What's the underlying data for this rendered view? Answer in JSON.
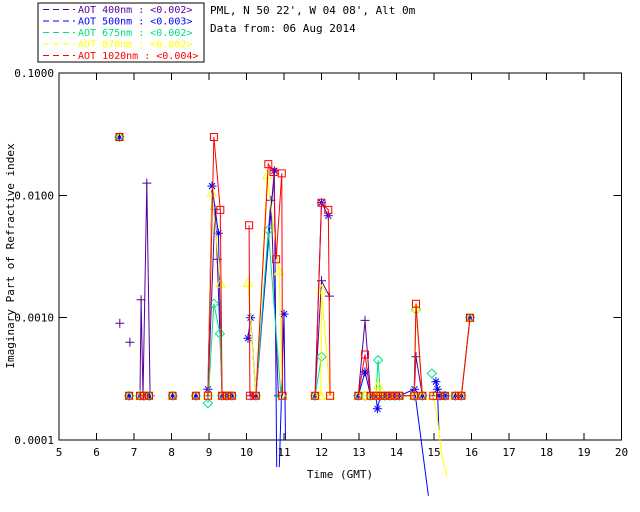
{
  "header": {
    "line1": "PML, N 50 22', W 04 08', Alt 0m",
    "line2": "Data from: 06 Aug 2014"
  },
  "legend": {
    "entries": [
      {
        "label": "AOT  400nm : <0.002>",
        "color": "#550099"
      },
      {
        "label": "AOT  500nm : <0.003>",
        "color": "#0000ff"
      },
      {
        "label": "AOT  675nm : <0.002>",
        "color": "#00e080"
      },
      {
        "label": "AOT  870nm : <0.002>",
        "color": "#ffff00"
      },
      {
        "label": "AOT 1020nm : <0.004>",
        "color": "#ff0000"
      }
    ]
  },
  "chart_data": {
    "type": "line",
    "xlabel": "Time (GMT)",
    "ylabel": "Imaginary Part of Refractive index",
    "x_axis": {
      "min": 5,
      "max": 20,
      "ticks": [
        5,
        6,
        7,
        8,
        9,
        10,
        11,
        12,
        13,
        14,
        15,
        16,
        17,
        18,
        19,
        20
      ]
    },
    "y_axis": {
      "scale": "log",
      "min": 0.0001,
      "max": 0.1,
      "tick_values": [
        0.1,
        0.01,
        0.001,
        0.0001
      ],
      "tick_labels": [
        "0.1000",
        "0.0100",
        "0.0010",
        "0.0001"
      ]
    },
    "grid": false,
    "note": "points are [time_gmt, value]; a trailing 0 means line vertex without marker (trace dips below axis)",
    "series": [
      {
        "name": "AOT 400nm",
        "color": "#550099",
        "marker": "plus",
        "segments": [
          [
            [
              6.61,
              0.03
            ]
          ],
          [
            [
              6.62,
              0.0009
            ]
          ],
          [
            [
              6.89,
              0.00063
            ]
          ],
          [
            [
              6.87,
              0.00023
            ]
          ],
          [
            [
              7.16,
              0.00023
            ],
            [
              7.19,
              0.0014
            ],
            [
              7.24,
              0.00023
            ],
            [
              7.34,
              0.0126
            ],
            [
              7.43,
              0.00023
            ]
          ],
          [
            [
              8.03,
              0.00023
            ]
          ],
          [
            [
              8.65,
              0.00023
            ]
          ],
          [
            [
              8.97,
              0.00023
            ],
            [
              9.16,
              0.0077
            ],
            [
              9.22,
              0.003
            ],
            [
              9.35,
              0.00023
            ],
            [
              9.48,
              0.00023
            ],
            [
              9.61,
              0.00023
            ]
          ],
          [
            [
              10.12,
              0.00023
            ],
            [
              10.25,
              0.00023
            ],
            [
              10.65,
              0.0091
            ],
            [
              10.85,
              0.00023
            ]
          ],
          [
            [
              11.83,
              0.00023
            ],
            [
              12.0,
              0.002
            ],
            [
              12.21,
              0.0015
            ]
          ],
          [
            [
              12.98,
              0.00023
            ],
            [
              13.16,
              0.00095
            ],
            [
              13.31,
              0.00023
            ],
            [
              13.45,
              0.00023
            ],
            [
              13.57,
              0.00023
            ],
            [
              13.69,
              0.00023
            ],
            [
              13.82,
              0.00023
            ],
            [
              13.95,
              0.00023
            ],
            [
              14.08,
              0.00023
            ],
            [
              14.47,
              0.00023
            ],
            [
              14.52,
              0.00048
            ],
            [
              14.69,
              0.00023
            ]
          ],
          [
            [
              14.98,
              0.00023
            ]
          ],
          [
            [
              15.16,
              0.00023
            ],
            [
              15.29,
              0.00023
            ]
          ],
          [
            [
              15.57,
              0.00023
            ],
            [
              15.73,
              0.00023
            ],
            [
              15.96,
              0.001
            ]
          ]
        ]
      },
      {
        "name": "AOT 500nm",
        "color": "#0000ff",
        "marker": "asterisk",
        "segments": [
          [
            [
              6.61,
              0.03
            ]
          ],
          [
            [
              6.87,
              0.00023
            ]
          ],
          [
            [
              7.16,
              0.00023
            ],
            [
              7.27,
              0.00023
            ],
            [
              7.4,
              0.00023
            ]
          ],
          [
            [
              8.03,
              0.00023
            ]
          ],
          [
            [
              8.65,
              0.00023
            ]
          ],
          [
            [
              8.97,
              0.00026
            ],
            [
              9.08,
              0.0119
            ],
            [
              9.25,
              0.0049
            ],
            [
              9.35,
              0.00023
            ],
            [
              9.48,
              0.00023
            ],
            [
              9.61,
              0.00023
            ]
          ],
          [
            [
              10.04,
              0.00068
            ],
            [
              10.11,
              0.001
            ],
            [
              10.25,
              0.00023
            ],
            [
              10.74,
              0.0159
            ],
            [
              10.805,
              6e-05,
              0
            ]
          ],
          [
            [
              10.875,
              6e-05,
              0
            ],
            [
              11.0,
              0.00107
            ],
            [
              11.04,
              0.0001,
              0
            ]
          ],
          [
            [
              11.83,
              0.00023
            ],
            [
              12.0,
              0.0087
            ],
            [
              12.18,
              0.0068
            ]
          ],
          [
            [
              12.98,
              0.00023
            ],
            [
              13.16,
              0.00036
            ],
            [
              13.31,
              0.00023
            ],
            [
              13.45,
              0.00023
            ],
            [
              13.49,
              0.00018
            ],
            [
              13.57,
              0.00023
            ],
            [
              13.69,
              0.00023
            ],
            [
              13.82,
              0.00023
            ],
            [
              13.95,
              0.00023
            ],
            [
              14.08,
              0.00023
            ],
            [
              14.48,
              0.00026
            ],
            [
              14.85,
              3.5e-05,
              0
            ]
          ],
          [
            [
              14.69,
              0.00023
            ]
          ],
          [
            [
              15.05,
              0.0003
            ],
            [
              15.09,
              0.00026
            ],
            [
              15.13,
              0.00012,
              0
            ]
          ],
          [
            [
              15.16,
              0.00023
            ],
            [
              15.29,
              0.00023
            ]
          ],
          [
            [
              15.57,
              0.00023
            ],
            [
              15.73,
              0.00023
            ],
            [
              15.96,
              0.001
            ]
          ]
        ]
      },
      {
        "name": "AOT 675nm",
        "color": "#00e080",
        "marker": "diamond",
        "segments": [
          [
            [
              6.61,
              0.03
            ]
          ],
          [
            [
              6.87,
              0.00023
            ]
          ],
          [
            [
              7.16,
              0.00023
            ],
            [
              7.27,
              0.00023
            ],
            [
              7.4,
              0.00023
            ]
          ],
          [
            [
              8.03,
              0.00023
            ]
          ],
          [
            [
              8.65,
              0.00023
            ]
          ],
          [
            [
              8.97,
              0.0002
            ],
            [
              9.13,
              0.0013
            ],
            [
              9.29,
              0.00074
            ],
            [
              9.35,
              0.00023
            ],
            [
              9.48,
              0.00023
            ],
            [
              9.61,
              0.00023
            ]
          ],
          [
            [
              10.25,
              0.00023
            ],
            [
              10.58,
              0.0052
            ],
            [
              10.92,
              0.00023
            ]
          ],
          [
            [
              11.83,
              0.00023
            ],
            [
              12.0,
              0.00048
            ]
          ],
          [
            [
              12.98,
              0.00023
            ],
            [
              13.16,
              0.00023
            ],
            [
              13.31,
              0.00023
            ],
            [
              13.45,
              0.00023
            ],
            [
              13.51,
              0.00045
            ],
            [
              13.57,
              0.00023
            ],
            [
              13.69,
              0.00023
            ],
            [
              13.82,
              0.00023
            ],
            [
              13.95,
              0.00023
            ],
            [
              14.08,
              0.00023
            ],
            [
              14.47,
              0.00023
            ],
            [
              14.52,
              0.00117
            ],
            [
              14.69,
              0.00023
            ]
          ],
          [
            [
              14.94,
              0.00035
            ]
          ],
          [
            [
              15.16,
              0.00023
            ],
            [
              15.29,
              0.00023
            ]
          ],
          [
            [
              15.57,
              0.00023
            ],
            [
              15.73,
              0.00023
            ],
            [
              15.96,
              0.001
            ]
          ]
        ]
      },
      {
        "name": "AOT 870nm",
        "color": "#ffff00",
        "marker": "triangle",
        "segments": [
          [
            [
              6.61,
              0.03
            ]
          ],
          [
            [
              6.87,
              0.00023
            ]
          ],
          [
            [
              7.16,
              0.00023
            ],
            [
              7.27,
              0.00023
            ],
            [
              7.4,
              0.00023
            ]
          ],
          [
            [
              8.03,
              0.00023
            ]
          ],
          [
            [
              8.65,
              0.00023
            ]
          ],
          [
            [
              8.97,
              0.00023
            ],
            [
              9.08,
              0.0105
            ],
            [
              9.31,
              0.0019
            ],
            [
              9.35,
              0.00023
            ],
            [
              9.48,
              0.00023
            ],
            [
              9.61,
              0.00023
            ]
          ],
          [
            [
              10.04,
              0.00193
            ],
            [
              10.25,
              0.00023
            ],
            [
              10.55,
              0.0146
            ],
            [
              10.87,
              0.0024
            ],
            [
              10.96,
              0.00023
            ]
          ],
          [
            [
              11.83,
              0.00023
            ],
            [
              11.98,
              0.00023
            ],
            [
              12.0,
              0.0017
            ],
            [
              12.23,
              0.00023
            ]
          ],
          [
            [
              12.98,
              0.00023
            ],
            [
              13.16,
              0.00023
            ],
            [
              13.31,
              0.00023
            ],
            [
              13.45,
              0.00023
            ],
            [
              13.51,
              0.00028
            ],
            [
              13.57,
              0.00023
            ],
            [
              13.69,
              0.00023
            ],
            [
              13.82,
              0.00023
            ],
            [
              13.95,
              0.00023
            ],
            [
              14.08,
              0.00023
            ],
            [
              14.47,
              0.00023
            ],
            [
              14.52,
              0.0012
            ],
            [
              14.69,
              0.00023
            ]
          ],
          [
            [
              14.98,
              0.00023
            ],
            [
              15.1,
              0.00014,
              0
            ],
            [
              15.22,
              7e-05,
              0
            ],
            [
              15.35,
              5e-05,
              0
            ]
          ],
          [
            [
              15.57,
              0.00023
            ],
            [
              15.73,
              0.00023
            ],
            [
              15.96,
              0.001
            ]
          ]
        ]
      },
      {
        "name": "AOT 1020nm",
        "color": "#ff0000",
        "marker": "square",
        "segments": [
          [
            [
              6.61,
              0.03
            ]
          ],
          [
            [
              6.87,
              0.00023
            ]
          ],
          [
            [
              7.16,
              0.00023
            ],
            [
              7.27,
              0.00023
            ],
            [
              7.4,
              0.00023
            ]
          ],
          [
            [
              8.03,
              0.00023
            ]
          ],
          [
            [
              8.65,
              0.00023
            ]
          ],
          [
            [
              8.97,
              0.00023
            ],
            [
              9.13,
              0.03
            ],
            [
              9.3,
              0.0076
            ],
            [
              9.35,
              0.00023
            ],
            [
              9.48,
              0.00023
            ],
            [
              9.61,
              0.00023
            ]
          ],
          [
            [
              10.07,
              0.0057
            ],
            [
              10.09,
              0.00023
            ],
            [
              10.25,
              0.00023
            ],
            [
              10.58,
              0.018
            ],
            [
              10.72,
              0.0155
            ],
            [
              10.79,
              0.003
            ],
            [
              10.94,
              0.0151
            ],
            [
              10.96,
              0.00023
            ]
          ],
          [
            [
              11.83,
              0.00023
            ],
            [
              12.0,
              0.0087
            ],
            [
              12.18,
              0.0076
            ],
            [
              12.23,
              0.00023
            ]
          ],
          [
            [
              12.98,
              0.00023
            ],
            [
              13.16,
              0.0005
            ],
            [
              13.31,
              0.00023
            ],
            [
              13.45,
              0.00023
            ],
            [
              13.57,
              0.00023
            ],
            [
              13.69,
              0.00023
            ],
            [
              13.82,
              0.00023
            ],
            [
              13.95,
              0.00023
            ],
            [
              14.08,
              0.00023
            ],
            [
              14.47,
              0.00023
            ],
            [
              14.52,
              0.0013
            ],
            [
              14.69,
              0.00023
            ]
          ],
          [
            [
              14.98,
              0.00023
            ]
          ],
          [
            [
              15.16,
              0.00023
            ],
            [
              15.29,
              0.00023
            ]
          ],
          [
            [
              15.57,
              0.00023
            ],
            [
              15.73,
              0.00023
            ],
            [
              15.96,
              0.001
            ]
          ]
        ]
      }
    ]
  }
}
